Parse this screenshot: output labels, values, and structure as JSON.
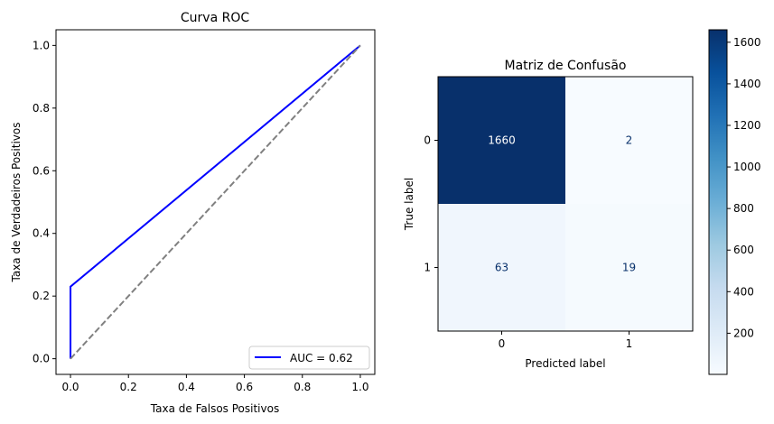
{
  "chart_data": [
    {
      "type": "line",
      "title": "Curva ROC",
      "xlabel": "Taxa de Falsos Positivos",
      "ylabel": "Taxa de Verdadeiros Positivos",
      "xlim": [
        -0.05,
        1.05
      ],
      "ylim": [
        -0.05,
        1.05
      ],
      "xticks": [
        0.0,
        0.2,
        0.4,
        0.6,
        0.8,
        1.0
      ],
      "yticks": [
        0.0,
        0.2,
        0.4,
        0.6,
        0.8,
        1.0
      ],
      "tick_labels": [
        "0.0",
        "0.2",
        "0.4",
        "0.6",
        "0.8",
        "1.0"
      ],
      "legend_position": "lower-right",
      "series": [
        {
          "name": "AUC = 0.62",
          "color": "#0000ff",
          "x": [
            0.0,
            0.0,
            1.0
          ],
          "y": [
            0.0,
            0.23,
            1.0
          ]
        },
        {
          "color": "#808080",
          "dashed": true,
          "x": [
            0.0,
            1.0
          ],
          "y": [
            0.0,
            1.0
          ]
        }
      ]
    },
    {
      "type": "heatmap",
      "title": "Matriz de Confusão",
      "xlabel": "Predicted label",
      "ylabel": "True label",
      "x_categories": [
        "0",
        "1"
      ],
      "y_categories": [
        "0",
        "1"
      ],
      "values": [
        [
          1660,
          2
        ],
        [
          63,
          19
        ]
      ],
      "colormap": "Blues",
      "colorbar": {
        "min": 2,
        "max": 1660,
        "ticks": [
          200,
          400,
          600,
          800,
          1000,
          1200,
          1400,
          1600
        ],
        "tick_labels": [
          "200",
          "400",
          "600",
          "800",
          "1000",
          "1200",
          "1400",
          "1600"
        ]
      }
    }
  ]
}
